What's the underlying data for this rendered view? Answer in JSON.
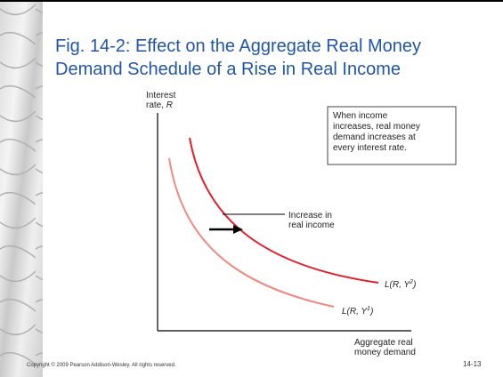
{
  "title": [
    "Fig. 14-2: Effect on the Aggregate Real Money",
    "Demand Schedule of a Rise in Real Income"
  ],
  "y_axis_label": [
    "Interest",
    "rate, ",
    "R"
  ],
  "x_axis_label": [
    "Aggregate real",
    "money demand"
  ],
  "annotation_box": [
    "When income",
    "increases, real money",
    "demand increases at",
    "every interest rate."
  ],
  "arrow_label": [
    "Increase in",
    "real income"
  ],
  "curves": [
    {
      "prefix": "L(R, Y",
      "sup": "2",
      "suffix": ")"
    },
    {
      "prefix": "L(R, Y",
      "sup": "1",
      "suffix": ")"
    }
  ],
  "footer": {
    "copyright": "Copyright © 2009 Pearson Addison-Wesley. All rights reserved.",
    "slide_number": "14-13"
  }
}
